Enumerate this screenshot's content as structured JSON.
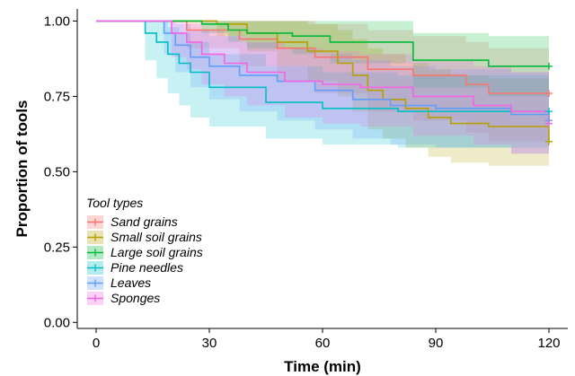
{
  "chart_data": {
    "type": "line",
    "step": true,
    "title": "",
    "xlabel": "Time (min)",
    "ylabel": "Proportion of tools",
    "xlim": [
      -5,
      125
    ],
    "ylim": [
      -0.02,
      1.04
    ],
    "xticks": [
      0,
      30,
      60,
      90,
      120
    ],
    "yticks": [
      0.0,
      0.25,
      0.5,
      0.75,
      1.0
    ],
    "ytick_labels": [
      "0.00",
      "0.25",
      "0.50",
      "0.75",
      "1.00"
    ],
    "grid": false,
    "legend": {
      "title": "Tool types",
      "placement": "bottom-left"
    },
    "series": [
      {
        "name": "Sand grains",
        "color": "#F8766D",
        "points": [
          [
            0,
            1.0
          ],
          [
            24,
            0.97
          ],
          [
            38,
            0.94
          ],
          [
            48,
            0.91
          ],
          [
            58,
            0.88
          ],
          [
            72,
            0.84
          ],
          [
            84,
            0.82
          ],
          [
            98,
            0.79
          ],
          [
            104,
            0.76
          ],
          [
            120,
            0.76
          ]
        ],
        "upper": [
          [
            0,
            1.0
          ],
          [
            24,
            1.0
          ],
          [
            38,
            1.0
          ],
          [
            48,
            1.0
          ],
          [
            58,
            0.99
          ],
          [
            72,
            0.97
          ],
          [
            84,
            0.95
          ],
          [
            98,
            0.93
          ],
          [
            104,
            0.91
          ],
          [
            120,
            0.91
          ]
        ],
        "lower": [
          [
            0,
            1.0
          ],
          [
            24,
            0.91
          ],
          [
            38,
            0.85
          ],
          [
            48,
            0.8
          ],
          [
            58,
            0.76
          ],
          [
            72,
            0.7
          ],
          [
            84,
            0.67
          ],
          [
            98,
            0.63
          ],
          [
            104,
            0.6
          ],
          [
            120,
            0.6
          ]
        ]
      },
      {
        "name": "Small soil grains",
        "color": "#B79F00",
        "points": [
          [
            0,
            1.0
          ],
          [
            32,
            0.99
          ],
          [
            40,
            0.96
          ],
          [
            48,
            0.93
          ],
          [
            56,
            0.9
          ],
          [
            64,
            0.86
          ],
          [
            68,
            0.82
          ],
          [
            72,
            0.77
          ],
          [
            76,
            0.74
          ],
          [
            82,
            0.71
          ],
          [
            88,
            0.68
          ],
          [
            94,
            0.66
          ],
          [
            104,
            0.65
          ],
          [
            120,
            0.6
          ]
        ],
        "upper": [
          [
            0,
            1.0
          ],
          [
            32,
            1.0
          ],
          [
            40,
            1.0
          ],
          [
            48,
            1.0
          ],
          [
            56,
            0.99
          ],
          [
            64,
            0.97
          ],
          [
            68,
            0.94
          ],
          [
            72,
            0.91
          ],
          [
            76,
            0.89
          ],
          [
            82,
            0.86
          ],
          [
            88,
            0.84
          ],
          [
            94,
            0.82
          ],
          [
            104,
            0.81
          ],
          [
            120,
            0.77
          ]
        ],
        "lower": [
          [
            0,
            1.0
          ],
          [
            32,
            0.95
          ],
          [
            40,
            0.9
          ],
          [
            48,
            0.85
          ],
          [
            56,
            0.8
          ],
          [
            64,
            0.75
          ],
          [
            68,
            0.7
          ],
          [
            72,
            0.64
          ],
          [
            76,
            0.61
          ],
          [
            82,
            0.58
          ],
          [
            88,
            0.55
          ],
          [
            94,
            0.53
          ],
          [
            104,
            0.52
          ],
          [
            120,
            0.47
          ]
        ]
      },
      {
        "name": "Large soil grains",
        "color": "#00BA38",
        "points": [
          [
            0,
            1.0
          ],
          [
            28,
            0.99
          ],
          [
            35,
            0.97
          ],
          [
            40,
            0.96
          ],
          [
            52,
            0.95
          ],
          [
            62,
            0.93
          ],
          [
            84,
            0.87
          ],
          [
            104,
            0.85
          ],
          [
            120,
            0.85
          ]
        ],
        "upper": [
          [
            0,
            1.0
          ],
          [
            28,
            1.0
          ],
          [
            35,
            1.0
          ],
          [
            40,
            1.0
          ],
          [
            52,
            1.0
          ],
          [
            62,
            1.0
          ],
          [
            84,
            0.96
          ],
          [
            104,
            0.95
          ],
          [
            120,
            0.95
          ]
        ],
        "lower": [
          [
            0,
            1.0
          ],
          [
            28,
            0.96
          ],
          [
            35,
            0.93
          ],
          [
            40,
            0.91
          ],
          [
            52,
            0.89
          ],
          [
            62,
            0.86
          ],
          [
            84,
            0.78
          ],
          [
            104,
            0.75
          ],
          [
            120,
            0.75
          ]
        ]
      },
      {
        "name": "Pine needles",
        "color": "#00BFC4",
        "points": [
          [
            0,
            1.0
          ],
          [
            13,
            0.96
          ],
          [
            16,
            0.93
          ],
          [
            19,
            0.89
          ],
          [
            22,
            0.86
          ],
          [
            25,
            0.83
          ],
          [
            30,
            0.78
          ],
          [
            45,
            0.73
          ],
          [
            60,
            0.71
          ],
          [
            80,
            0.7
          ],
          [
            120,
            0.7
          ]
        ],
        "upper": [
          [
            0,
            1.0
          ],
          [
            13,
            1.0
          ],
          [
            16,
            1.0
          ],
          [
            19,
            0.98
          ],
          [
            22,
            0.96
          ],
          [
            25,
            0.93
          ],
          [
            30,
            0.89
          ],
          [
            45,
            0.85
          ],
          [
            60,
            0.83
          ],
          [
            80,
            0.82
          ],
          [
            120,
            0.82
          ]
        ],
        "lower": [
          [
            0,
            1.0
          ],
          [
            13,
            0.87
          ],
          [
            16,
            0.81
          ],
          [
            19,
            0.76
          ],
          [
            22,
            0.72
          ],
          [
            25,
            0.68
          ],
          [
            30,
            0.65
          ],
          [
            45,
            0.61
          ],
          [
            60,
            0.59
          ],
          [
            80,
            0.58
          ],
          [
            120,
            0.58
          ]
        ]
      },
      {
        "name": "Leaves",
        "color": "#619CFF",
        "points": [
          [
            0,
            1.0
          ],
          [
            18,
            0.96
          ],
          [
            21,
            0.92
          ],
          [
            25,
            0.88
          ],
          [
            30,
            0.85
          ],
          [
            38,
            0.82
          ],
          [
            48,
            0.8
          ],
          [
            58,
            0.77
          ],
          [
            68,
            0.74
          ],
          [
            78,
            0.72
          ],
          [
            90,
            0.71
          ],
          [
            110,
            0.69
          ],
          [
            120,
            0.67
          ]
        ],
        "upper": [
          [
            0,
            1.0
          ],
          [
            18,
            1.0
          ],
          [
            21,
            0.99
          ],
          [
            25,
            0.97
          ],
          [
            30,
            0.95
          ],
          [
            38,
            0.93
          ],
          [
            48,
            0.91
          ],
          [
            58,
            0.89
          ],
          [
            68,
            0.87
          ],
          [
            78,
            0.85
          ],
          [
            90,
            0.84
          ],
          [
            110,
            0.83
          ],
          [
            120,
            0.81
          ]
        ],
        "lower": [
          [
            0,
            1.0
          ],
          [
            18,
            0.89
          ],
          [
            21,
            0.83
          ],
          [
            25,
            0.78
          ],
          [
            30,
            0.74
          ],
          [
            38,
            0.7
          ],
          [
            48,
            0.67
          ],
          [
            58,
            0.64
          ],
          [
            68,
            0.61
          ],
          [
            78,
            0.59
          ],
          [
            90,
            0.58
          ],
          [
            110,
            0.56
          ],
          [
            120,
            0.54
          ]
        ]
      },
      {
        "name": "Sponges",
        "color": "#F564E3",
        "points": [
          [
            0,
            1.0
          ],
          [
            20,
            0.96
          ],
          [
            24,
            0.93
          ],
          [
            28,
            0.89
          ],
          [
            34,
            0.86
          ],
          [
            40,
            0.83
          ],
          [
            50,
            0.8
          ],
          [
            60,
            0.79
          ],
          [
            70,
            0.78
          ],
          [
            84,
            0.75
          ],
          [
            100,
            0.72
          ],
          [
            110,
            0.7
          ],
          [
            120,
            0.66
          ]
        ],
        "upper": [
          [
            0,
            1.0
          ],
          [
            20,
            1.0
          ],
          [
            24,
            0.99
          ],
          [
            28,
            0.97
          ],
          [
            34,
            0.95
          ],
          [
            40,
            0.93
          ],
          [
            50,
            0.91
          ],
          [
            60,
            0.9
          ],
          [
            70,
            0.89
          ],
          [
            84,
            0.87
          ],
          [
            100,
            0.85
          ],
          [
            110,
            0.83
          ],
          [
            120,
            0.8
          ]
        ],
        "lower": [
          [
            0,
            1.0
          ],
          [
            20,
            0.88
          ],
          [
            24,
            0.84
          ],
          [
            28,
            0.79
          ],
          [
            34,
            0.75
          ],
          [
            40,
            0.72
          ],
          [
            50,
            0.68
          ],
          [
            60,
            0.66
          ],
          [
            70,
            0.65
          ],
          [
            84,
            0.62
          ],
          [
            100,
            0.59
          ],
          [
            110,
            0.56
          ],
          [
            120,
            0.52
          ]
        ]
      }
    ]
  }
}
